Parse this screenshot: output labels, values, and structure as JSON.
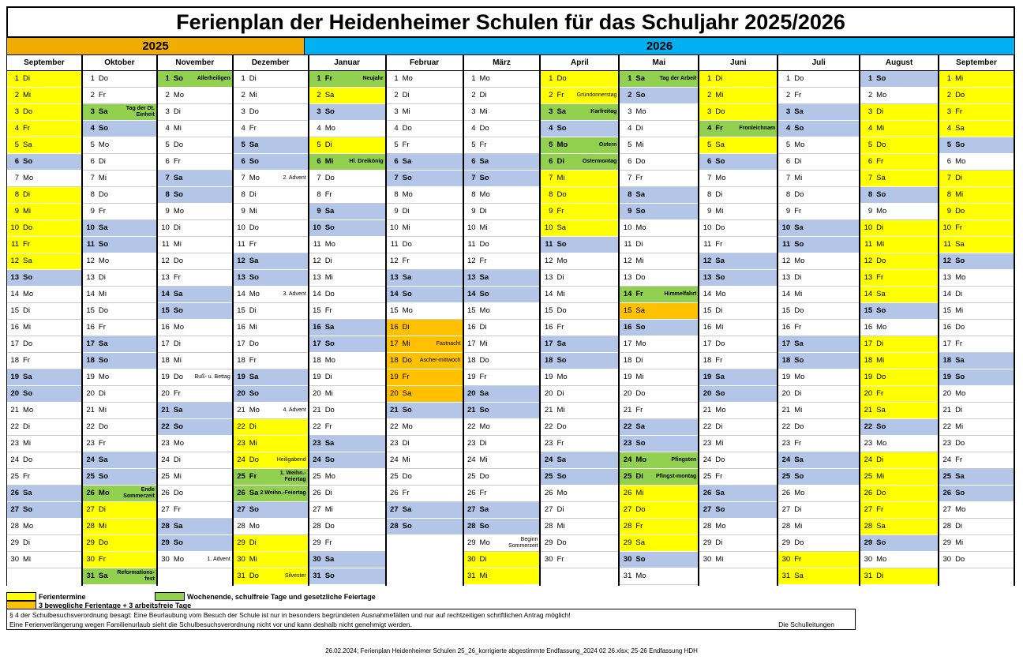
{
  "title": "Ferienplan der Heidenheimer Schulen für das Schuljahr 2025/2026",
  "years": [
    "2025",
    "2026"
  ],
  "colors": {
    "ferien": "#ffff00",
    "feiertag": "#92d050",
    "beweglich": "#ffc000",
    "weekend": "#b4c6e7",
    "year2025": "#f0ad00",
    "year2026": "#00b0f0"
  },
  "months": [
    {
      "name": "September",
      "year": 2025,
      "days": 30,
      "startDow": 1,
      "hol": [
        1,
        2,
        3,
        4,
        5,
        8,
        9,
        10,
        11,
        12
      ],
      "ph": [],
      "mov": [],
      "notes": {}
    },
    {
      "name": "Oktober",
      "year": 2025,
      "days": 31,
      "startDow": 3,
      "hol": [
        27,
        28,
        29,
        30,
        31
      ],
      "ph": [
        3,
        26,
        31
      ],
      "mov": [],
      "notes": {
        "3": "Tag der Dt. Einheit",
        "26": "Ende Sommerzeit",
        "31": "Reformations-fest"
      }
    },
    {
      "name": "November",
      "year": 2025,
      "days": 30,
      "startDow": 6,
      "hol": [],
      "ph": [
        1
      ],
      "mov": [],
      "notes": {
        "1": "Allerheiligen",
        "19": "Buß- u. Bettag",
        "30": "1. Advent"
      }
    },
    {
      "name": "Dezember",
      "year": 2025,
      "days": 31,
      "startDow": 1,
      "hol": [
        22,
        23,
        24,
        29,
        30,
        31
      ],
      "ph": [
        25,
        26
      ],
      "mov": [],
      "notes": {
        "7": "2. Advent",
        "14": "3. Advent",
        "21": "4. Advent",
        "24": "Heiligabend",
        "25": "1. Weihn.-Feiertag",
        "26": "2.Weihn.-Feiertag",
        "31": "Silvester"
      }
    },
    {
      "name": "Januar",
      "year": 2026,
      "days": 31,
      "startDow": 4,
      "hol": [
        2,
        5
      ],
      "ph": [
        1,
        6
      ],
      "mov": [],
      "notes": {
        "1": "Neujahr",
        "6": "Hl. Dreikönig"
      }
    },
    {
      "name": "Februar",
      "year": 2026,
      "days": 28,
      "startDow": 0,
      "hol": [],
      "ph": [],
      "mov": [
        16,
        17,
        18,
        19,
        20
      ],
      "notes": {
        "17": "Fastnacht",
        "18": "Ascher-mittwoch"
      }
    },
    {
      "name": "März",
      "year": 2026,
      "days": 31,
      "startDow": 0,
      "hol": [
        30,
        31
      ],
      "ph": [],
      "mov": [],
      "notes": {
        "29": "Beginn Sommerzeit"
      }
    },
    {
      "name": "April",
      "year": 2026,
      "days": 30,
      "startDow": 3,
      "hol": [
        1,
        2,
        7,
        8,
        9,
        10
      ],
      "ph": [
        3,
        5,
        6
      ],
      "mov": [],
      "notes": {
        "2": "Gründonnerstag",
        "3": "Karfreitag",
        "5": "Ostern",
        "6": "Ostermontag"
      }
    },
    {
      "name": "Mai",
      "year": 2026,
      "days": 31,
      "startDow": 5,
      "hol": [
        26,
        27,
        28,
        29
      ],
      "ph": [
        1,
        14,
        24,
        25
      ],
      "mov": [
        15
      ],
      "notes": {
        "1": "Tag der Arbeit",
        "14": "Himmelfahrt",
        "24": "Pfingsten",
        "25": "Pfingst-montag"
      }
    },
    {
      "name": "Juni",
      "year": 2026,
      "days": 30,
      "startDow": 1,
      "hol": [
        1,
        2,
        3,
        5
      ],
      "ph": [
        4
      ],
      "mov": [],
      "notes": {
        "4": "Fronleichnam"
      }
    },
    {
      "name": "Juli",
      "year": 2026,
      "days": 31,
      "startDow": 3,
      "hol": [
        30,
        31
      ],
      "ph": [],
      "mov": [],
      "notes": {}
    },
    {
      "name": "August",
      "year": 2026,
      "days": 31,
      "startDow": 6,
      "hol": [
        3,
        4,
        5,
        6,
        7,
        10,
        11,
        12,
        13,
        14,
        17,
        18,
        19,
        20,
        21,
        24,
        25,
        26,
        27,
        28,
        31
      ],
      "ph": [],
      "mov": [],
      "notes": {}
    },
    {
      "name": "September",
      "year": 2026,
      "days": 30,
      "startDow": 2,
      "hol": [
        1,
        2,
        3,
        4,
        7,
        8,
        9,
        10,
        11
      ],
      "ph": [],
      "mov": [],
      "notes": {}
    }
  ],
  "weekdays": [
    "Mo",
    "Di",
    "Mi",
    "Do",
    "Fr",
    "Sa",
    "So"
  ],
  "legend": {
    "ferientermine": "Ferientermine",
    "wochenende": "Wochenende, schulfreie Tage und gesetzliche Feiertage",
    "beweglich": "3 bewegliche Ferientage + 3 arbeitsfreie Tage"
  },
  "notes": {
    "line1": "§ 4 der Schulbesuchsverordnung besagt: Eine Beurlaubung vom Besuch der Schule ist nur in besonders begründeten Ausnahmefällen und nur auf rechtzeitigen schriftlichen Antrag möglich!",
    "line2": "Eine Ferienverlängerung wegen Familienurlaub sieht die Schulbesuchsverordnung nicht vor und kann deshalb nicht genehmigt werden.",
    "signature": "Die Schulleitungen"
  },
  "footer": "26.02.2024; Ferienplan Heidenheimer Schulen 25_26_korrigierte abgestimmte Endfassung_2024 02 26.xlsx; 25-26 Endfassung HDH"
}
